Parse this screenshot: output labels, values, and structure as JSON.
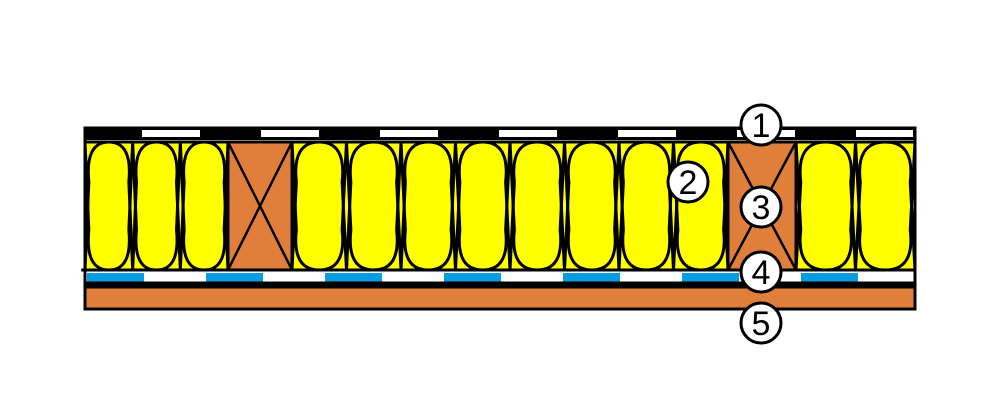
{
  "diagram": {
    "colors": {
      "membrane_dark": "#000000",
      "membrane_light": "#ffffff",
      "insulation": "#ffff00",
      "timber": "#e07e3c",
      "vapour_dash": "#0a9ce0",
      "lining": "#e07e3c",
      "outline": "#000000"
    },
    "callouts": [
      {
        "id": "1",
        "label": "1"
      },
      {
        "id": "2",
        "label": "2"
      },
      {
        "id": "3",
        "label": "3"
      },
      {
        "id": "4",
        "label": "4"
      },
      {
        "id": "5",
        "label": "5"
      }
    ]
  }
}
